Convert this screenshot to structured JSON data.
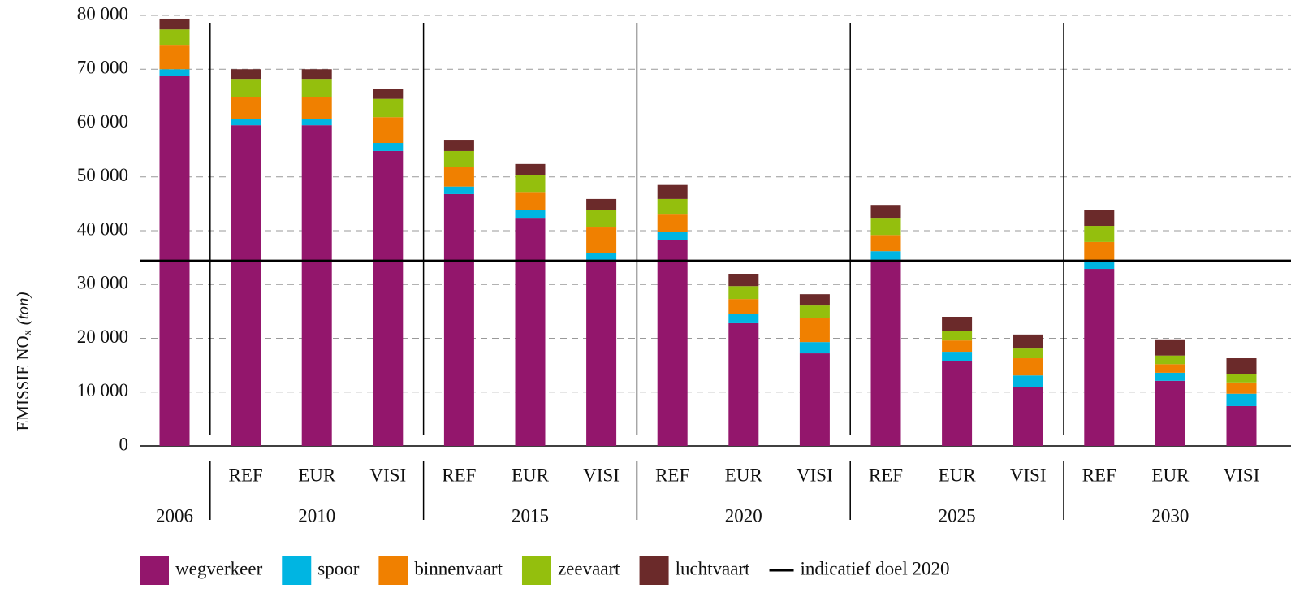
{
  "chart_data": {
    "type": "stacked-bar",
    "ylabel": {
      "text": "EMISSIE NO",
      "sub": "x",
      "unit": "(ton)"
    },
    "groups": [
      {
        "label": "2006",
        "categories": [
          null
        ]
      },
      {
        "label": "2010",
        "categories": [
          "REF",
          "EUR",
          "VISI"
        ]
      },
      {
        "label": "2015",
        "categories": [
          "REF",
          "EUR",
          "VISI"
        ]
      },
      {
        "label": "2020",
        "categories": [
          "REF",
          "EUR",
          "VISI"
        ]
      },
      {
        "label": "2025",
        "categories": [
          "REF",
          "EUR",
          "VISI"
        ]
      },
      {
        "label": "2030",
        "categories": [
          "REF",
          "EUR",
          "VISI"
        ]
      }
    ],
    "series": [
      {
        "name": "wegverkeer",
        "color": "#93166c",
        "values": [
          68800,
          59600,
          59600,
          54800,
          46800,
          42400,
          34600,
          38300,
          22800,
          17200,
          34600,
          15800,
          10900,
          32900,
          12100,
          7400
        ]
      },
      {
        "name": "spoor",
        "color": "#00b5e2",
        "values": [
          1200,
          1200,
          1200,
          1500,
          1400,
          1400,
          1300,
          1400,
          1700,
          2100,
          1600,
          1700,
          2200,
          1400,
          1500,
          2300
        ]
      },
      {
        "name": "binnenvaart",
        "color": "#f08000",
        "values": [
          4400,
          4100,
          4100,
          4800,
          3600,
          3400,
          4700,
          3300,
          2800,
          4400,
          3000,
          2100,
          3200,
          3600,
          1600,
          2100
        ]
      },
      {
        "name": "zeevaart",
        "color": "#94bf0d",
        "values": [
          3000,
          3300,
          3300,
          3400,
          3000,
          3100,
          3200,
          2900,
          2400,
          2400,
          3200,
          1800,
          1800,
          3000,
          1600,
          1600
        ]
      },
      {
        "name": "luchtvaart",
        "color": "#6b2a2a",
        "values": [
          2000,
          1800,
          1800,
          1800,
          2100,
          2100,
          2100,
          2600,
          2300,
          2100,
          2400,
          2600,
          2600,
          3000,
          3000,
          2900
        ]
      }
    ],
    "reference_line": {
      "name": "indicatief doel 2020",
      "value": 34400,
      "color": "#000000"
    },
    "ylim": [
      0,
      80000
    ],
    "yticks": [
      0,
      {
        "value": 10000,
        "label": "10 000"
      },
      {
        "value": 20000,
        "label": "20 000"
      },
      {
        "value": 30000,
        "label": "30 000"
      },
      {
        "value": 40000,
        "label": "40 000"
      },
      {
        "value": 50000,
        "label": "50 000"
      },
      {
        "value": 60000,
        "label": "60 000"
      },
      {
        "value": 70000,
        "label": "70 000"
      },
      {
        "value": 80000,
        "label": "80 000"
      }
    ],
    "grid": true
  }
}
